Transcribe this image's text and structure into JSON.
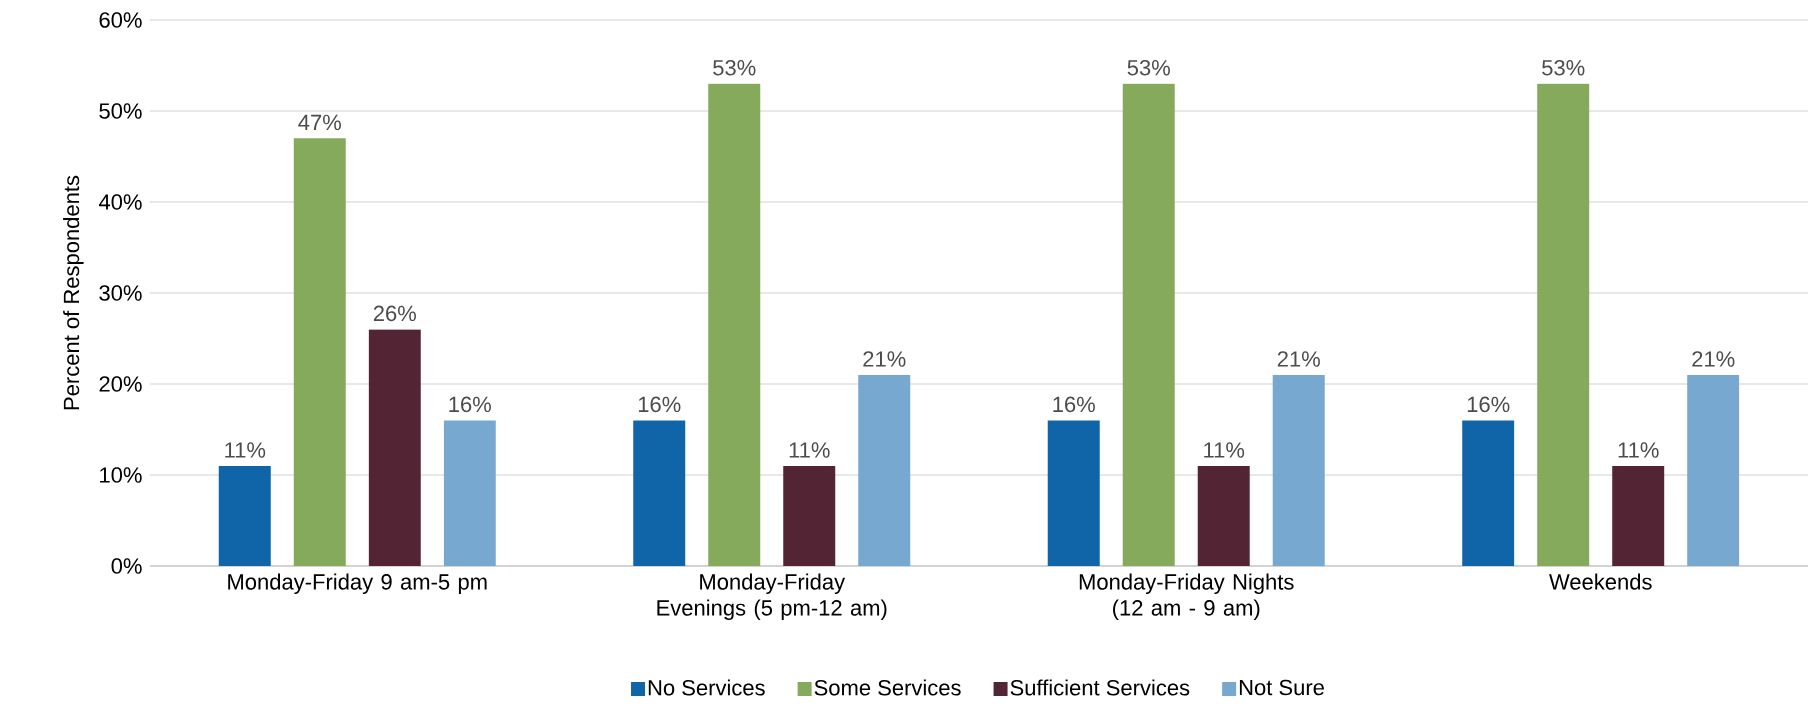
{
  "chart_data": {
    "type": "bar",
    "ylabel": "Percent of Respondents",
    "categories": [
      "Monday-Friday 9 am-5 pm",
      "Monday-Friday Evenings (5 pm-12 am)",
      "Monday-Friday Nights (12 am - 9 am)",
      "Weekends"
    ],
    "series": [
      {
        "name": "No Services",
        "color": "#1064a8",
        "values": [
          11,
          16,
          16,
          16
        ],
        "value_labels": [
          "11%",
          "16%",
          "16%",
          "16%"
        ]
      },
      {
        "name": "Some Services",
        "color": "#86aa5b",
        "values": [
          47,
          53,
          53,
          53
        ],
        "value_labels": [
          "47%",
          "53%",
          "53%",
          "53%"
        ]
      },
      {
        "name": "Sufficient Services",
        "color": "#532534",
        "values": [
          26,
          11,
          11,
          11
        ],
        "value_labels": [
          "26%",
          "11%",
          "11%",
          "11%"
        ]
      },
      {
        "name": "Not Sure",
        "color": "#77a8cf",
        "values": [
          16,
          21,
          21,
          21
        ],
        "value_labels": [
          "16%",
          "21%",
          "21%",
          "21%"
        ]
      }
    ],
    "ylim": [
      0,
      60
    ],
    "yticks": [
      {
        "value": 0,
        "label": "0%"
      },
      {
        "value": 10,
        "label": "10%"
      },
      {
        "value": 20,
        "label": "20%"
      },
      {
        "value": 30,
        "label": "30%"
      },
      {
        "value": 40,
        "label": "40%"
      },
      {
        "value": 50,
        "label": "50%"
      },
      {
        "value": 60,
        "label": "60%"
      }
    ],
    "grid": "y",
    "legend": "bottom"
  }
}
